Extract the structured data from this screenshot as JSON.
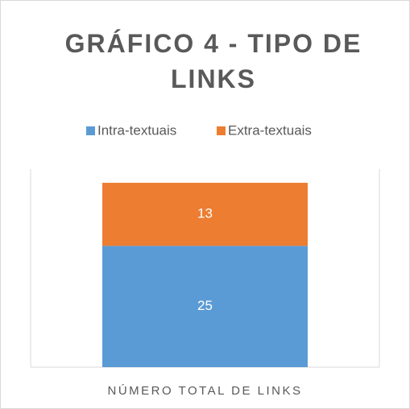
{
  "chart_data": {
    "type": "stacked_bar",
    "title": "GRÁFICO 4 - TIPO DE LINKS",
    "categories": [
      "NÚMERO TOTAL DE LINKS"
    ],
    "series": [
      {
        "name": "Intra-textuais",
        "color": "#5b9bd5",
        "values": [
          25
        ]
      },
      {
        "name": "Extra-textuais",
        "color": "#ed7d31",
        "values": [
          13
        ]
      }
    ],
    "legend": "top"
  }
}
